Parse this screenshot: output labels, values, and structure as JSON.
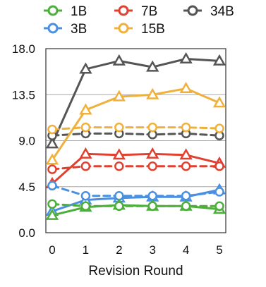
{
  "chart_data": {
    "type": "line",
    "title": "",
    "xlabel": "Revision Round",
    "ylabel": "",
    "x": [
      0,
      1,
      2,
      3,
      4,
      5
    ],
    "ylim": [
      0.0,
      18.0
    ],
    "yticks": [
      "0.0",
      "4.5",
      "9.0",
      "13.5",
      "18.0"
    ],
    "grid": "horizontal",
    "legend_position": "top",
    "marker_note": "solid lines with triangle markers and dashed lines with circle markers share each model color",
    "legend": [
      {
        "name": "1B",
        "color": "#4caf3a"
      },
      {
        "name": "7B",
        "color": "#e0402f"
      },
      {
        "name": "34B",
        "color": "#555555"
      },
      {
        "name": "3B",
        "color": "#4a90e2"
      },
      {
        "name": "15B",
        "color": "#f0b03c"
      }
    ],
    "series": [
      {
        "model": "34B",
        "color": "#555555",
        "style": "solid",
        "marker": "triangle",
        "values": [
          8.7,
          16.0,
          16.8,
          16.2,
          17.0,
          16.8
        ]
      },
      {
        "model": "34B",
        "color": "#555555",
        "style": "dashed",
        "marker": "circle",
        "values": [
          9.5,
          9.7,
          9.7,
          9.6,
          9.7,
          9.5
        ]
      },
      {
        "model": "15B",
        "color": "#f0b03c",
        "style": "solid",
        "marker": "triangle",
        "values": [
          7.1,
          12.0,
          13.3,
          13.5,
          14.1,
          12.7
        ]
      },
      {
        "model": "15B",
        "color": "#f0b03c",
        "style": "dashed",
        "marker": "circle",
        "values": [
          10.1,
          10.3,
          10.3,
          10.3,
          10.3,
          10.2
        ]
      },
      {
        "model": "7B",
        "color": "#e0402f",
        "style": "solid",
        "marker": "triangle",
        "values": [
          4.8,
          7.7,
          7.6,
          7.7,
          7.6,
          6.8
        ]
      },
      {
        "model": "7B",
        "color": "#e0402f",
        "style": "dashed",
        "marker": "circle",
        "values": [
          6.2,
          6.5,
          6.5,
          6.5,
          6.5,
          6.5
        ]
      },
      {
        "model": "3B",
        "color": "#4a90e2",
        "style": "solid",
        "marker": "triangle",
        "values": [
          2.1,
          3.2,
          3.4,
          3.5,
          3.5,
          4.2
        ]
      },
      {
        "model": "3B",
        "color": "#4a90e2",
        "style": "dashed",
        "marker": "circle",
        "values": [
          4.6,
          3.6,
          3.6,
          3.6,
          3.6,
          4.0
        ]
      },
      {
        "model": "1B",
        "color": "#4caf3a",
        "style": "solid",
        "marker": "triangle",
        "values": [
          1.7,
          2.5,
          2.7,
          2.6,
          2.6,
          2.3
        ]
      },
      {
        "model": "1B",
        "color": "#4caf3a",
        "style": "dashed",
        "marker": "circle",
        "values": [
          2.8,
          2.6,
          2.6,
          2.6,
          2.6,
          2.6
        ]
      }
    ]
  }
}
